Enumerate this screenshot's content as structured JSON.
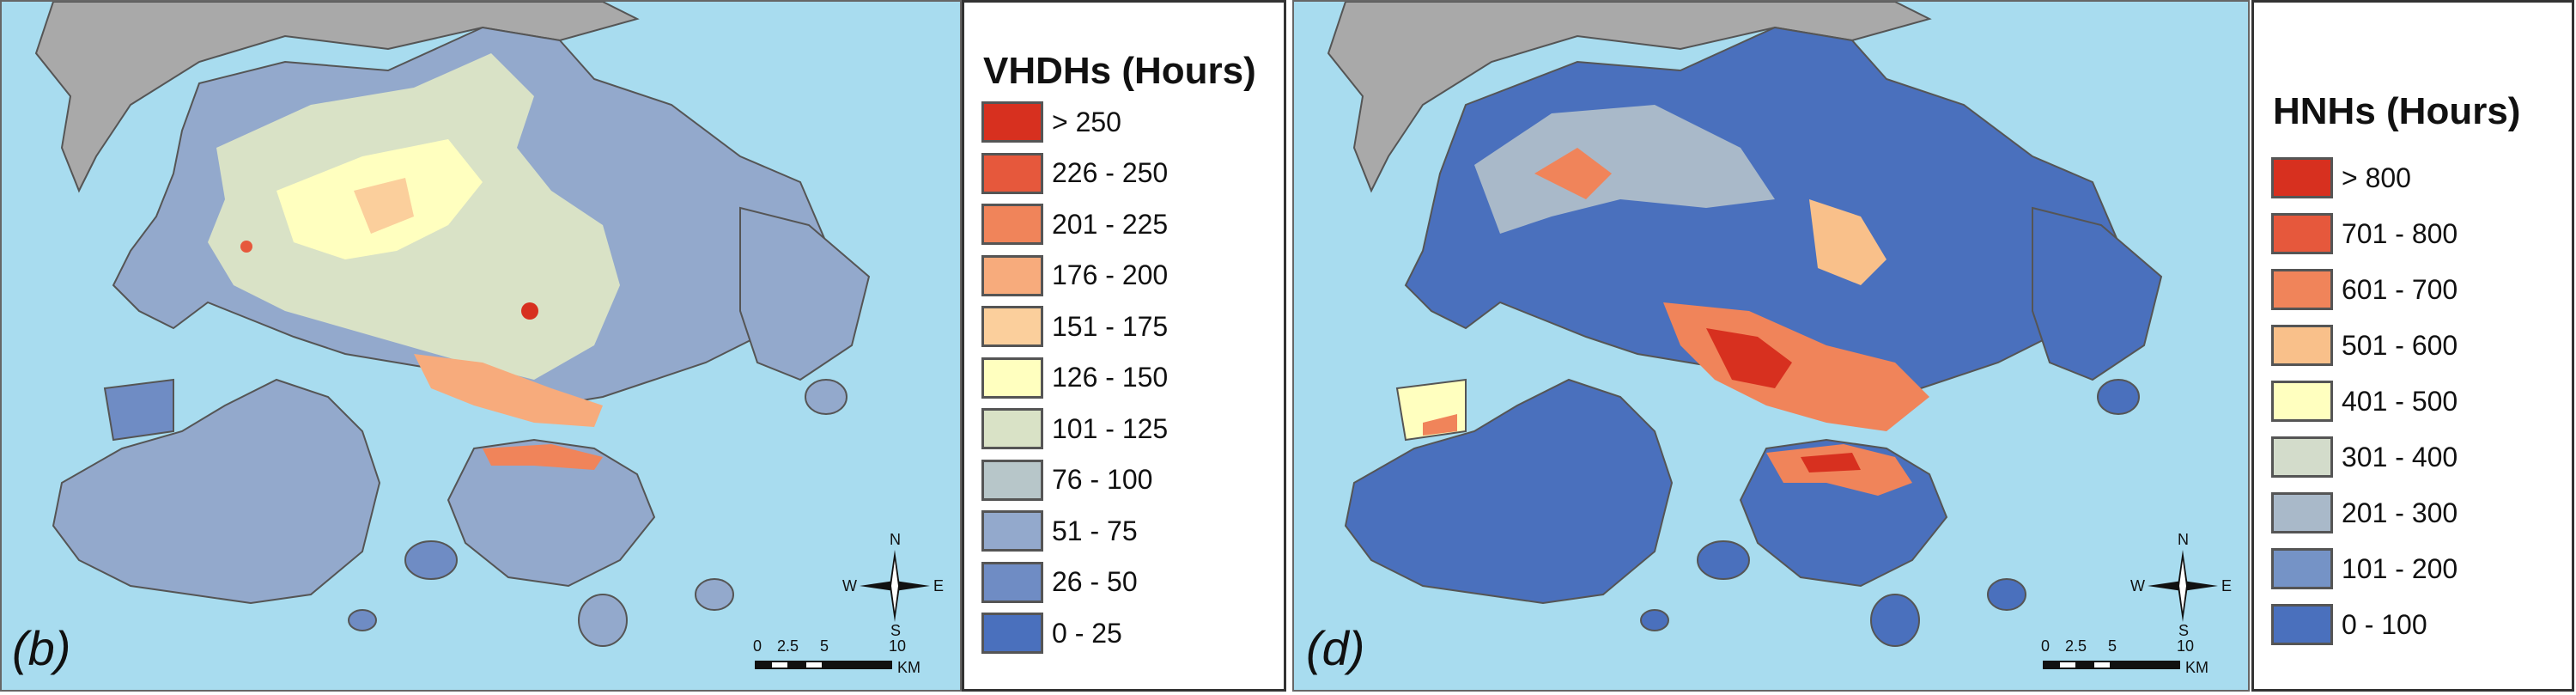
{
  "left_panel": {
    "label": "(b)",
    "legend_title": "VHDHs (Hours)",
    "legend": [
      {
        "label": "> 250",
        "color": "#d7301f"
      },
      {
        "label": "226 - 250",
        "color": "#e6583c"
      },
      {
        "label": "201 - 225",
        "color": "#f0845a"
      },
      {
        "label": "176 - 200",
        "color": "#f7ab7c"
      },
      {
        "label": "151 - 175",
        "color": "#fbcf9c"
      },
      {
        "label": "126 - 150",
        "color": "#ffffbf"
      },
      {
        "label": "101 - 125",
        "color": "#d9e2c6"
      },
      {
        "label": "76 - 100",
        "color": "#b7c6c9"
      },
      {
        "label": "51 - 75",
        "color": "#93a9cc"
      },
      {
        "label": "26 - 50",
        "color": "#6f8cc4"
      },
      {
        "label": "0 - 25",
        "color": "#4a70bd"
      }
    ]
  },
  "right_panel": {
    "label": "(d)",
    "legend_title": "HNHs (Hours)",
    "legend": [
      {
        "label": "> 800",
        "color": "#d7301f"
      },
      {
        "label": "701 - 800",
        "color": "#e6583c"
      },
      {
        "label": "601 - 700",
        "color": "#f0845a"
      },
      {
        "label": "501 - 600",
        "color": "#f9c08a"
      },
      {
        "label": "401 - 500",
        "color": "#ffffbf"
      },
      {
        "label": "301 - 400",
        "color": "#d3dccb"
      },
      {
        "label": "201 - 300",
        "color": "#a9b9c9"
      },
      {
        "label": "101 - 200",
        "color": "#7593c6"
      },
      {
        "label": "0 - 100",
        "color": "#4a70bd"
      }
    ]
  },
  "compass": {
    "n": "N",
    "s": "S",
    "e": "E",
    "w": "W"
  },
  "scale": {
    "ticks": [
      "0",
      "2.5",
      "5",
      "10"
    ],
    "unit": "KM"
  },
  "colors": {
    "water": "#a8dcef",
    "mainland": "#a9a9a9",
    "outline": "#555555"
  }
}
